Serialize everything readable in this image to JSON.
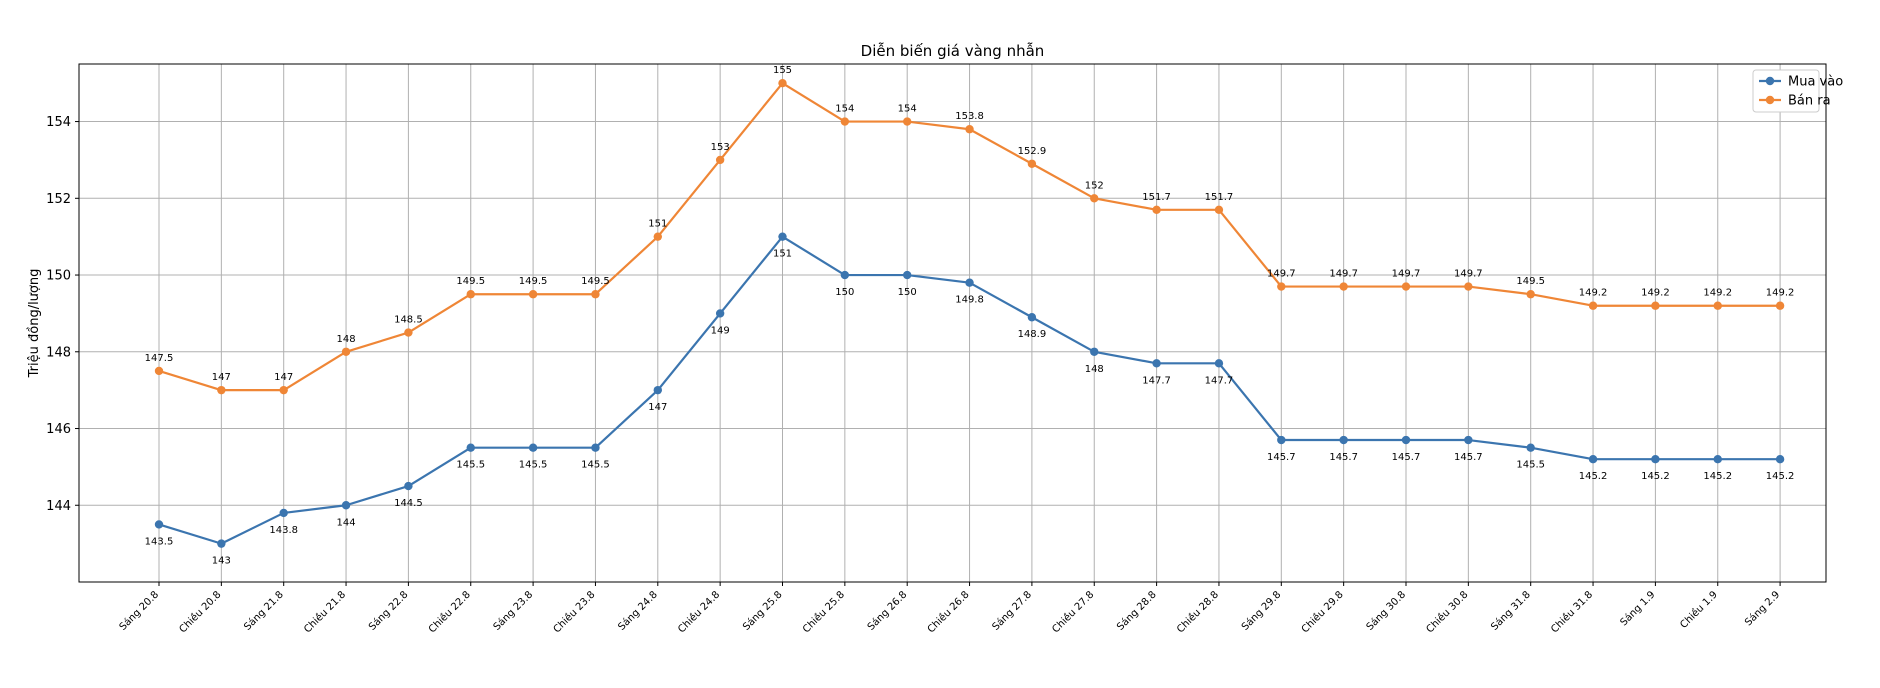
{
  "chart_data": {
    "type": "line",
    "title": "Diễn biến giá vàng nhẫn",
    "xlabel": "",
    "ylabel": "Triệu đồng/lượng",
    "categories": [
      "Sáng 20.8",
      "Chiều 20.8",
      "Sáng 21.8",
      "Chiều 21.8",
      "Sáng 22.8",
      "Chiều 22.8",
      "Sáng 23.8",
      "Chiều 23.8",
      "Sáng 24.8",
      "Chiều 24.8",
      "Sáng 25.8",
      "Chiều 25.8",
      "Sáng 26.8",
      "Chiều 26.8",
      "Sáng 27.8",
      "Chiều 27.8",
      "Sáng 28.8",
      "Chiều 28.8",
      "Sáng 29.8",
      "Chiều 29.8",
      "Sáng 30.8",
      "Chiều 30.8",
      "Sáng 31.8",
      "Chiều 31.8",
      "Sáng 1.9",
      "Chiều 1.9",
      "Sáng 2.9"
    ],
    "series": [
      {
        "name": "Mua vào",
        "color": "#3b75af",
        "label_position": "below",
        "values": [
          143.5,
          143,
          143.8,
          144,
          144.5,
          145.5,
          145.5,
          145.5,
          147,
          149,
          151,
          150,
          150,
          149.8,
          148.9,
          148,
          147.7,
          147.7,
          145.7,
          145.7,
          145.7,
          145.7,
          145.5,
          145.2,
          145.2,
          145.2,
          145.2
        ]
      },
      {
        "name": "Bán ra",
        "color": "#ef8636",
        "label_position": "above",
        "values": [
          147.5,
          147,
          147,
          148,
          148.5,
          149.5,
          149.5,
          149.5,
          151,
          153,
          155,
          154,
          154,
          153.8,
          152.9,
          152,
          151.7,
          151.7,
          149.7,
          149.7,
          149.7,
          149.7,
          149.5,
          149.2,
          149.2,
          149.2,
          149.2
        ]
      }
    ],
    "ylim": [
      142.0,
      155.5
    ],
    "yticks": [
      144,
      146,
      148,
      150,
      152,
      154
    ],
    "grid": true,
    "legend_position": "top-right"
  }
}
